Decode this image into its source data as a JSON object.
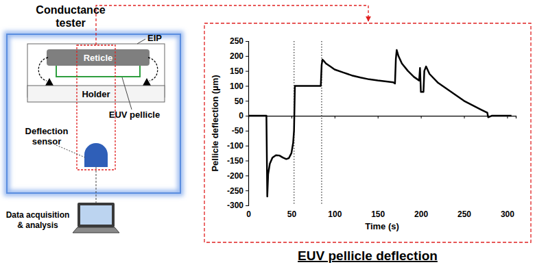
{
  "diagram": {
    "title": [
      "Conductance",
      "tester"
    ],
    "eip": "EIP",
    "reticle": "Reticle",
    "holder": "Holder",
    "pellicle": "EUV pellicle",
    "sensor": [
      "Deflection",
      "sensor"
    ],
    "computer": [
      "Data acquisition",
      "& analysis"
    ]
  },
  "chart_data": {
    "type": "line",
    "title": "EUV pellicle deflection",
    "x_label": "Time (s)",
    "y_label": "Pellicle deflection (µm)",
    "x": [
      0,
      21,
      22,
      23,
      25,
      28,
      32,
      36,
      40,
      44,
      47,
      50,
      52,
      53,
      54,
      60,
      70,
      84,
      85,
      86,
      88,
      90,
      95,
      100,
      110,
      120,
      130,
      140,
      150,
      160,
      168,
      170,
      171,
      172,
      174,
      178,
      185,
      192,
      198,
      199,
      200,
      203,
      204,
      206,
      210,
      220,
      230,
      240,
      250,
      260,
      270,
      277,
      278,
      282,
      305
    ],
    "values": [
      0,
      0,
      -270,
      -195,
      -160,
      -140,
      -132,
      -133,
      -140,
      -145,
      -142,
      -125,
      -90,
      -50,
      100,
      100,
      100,
      100,
      170,
      188,
      182,
      175,
      165,
      155,
      145,
      135,
      128,
      122,
      118,
      115,
      112,
      108,
      190,
      220,
      200,
      175,
      150,
      130,
      118,
      160,
      80,
      80,
      150,
      165,
      140,
      110,
      90,
      70,
      50,
      35,
      20,
      10,
      -5,
      0,
      0
    ],
    "color": "#000000",
    "vlines": [
      53,
      85
    ],
    "xlim": [
      0,
      310
    ],
    "ylim": [
      -300,
      250
    ],
    "xticks": [
      0,
      50,
      100,
      150,
      200,
      250,
      300
    ],
    "yticks": [
      -300,
      -250,
      -200,
      -150,
      -100,
      -50,
      0,
      50,
      100,
      150,
      200,
      250
    ],
    "grid": false
  }
}
